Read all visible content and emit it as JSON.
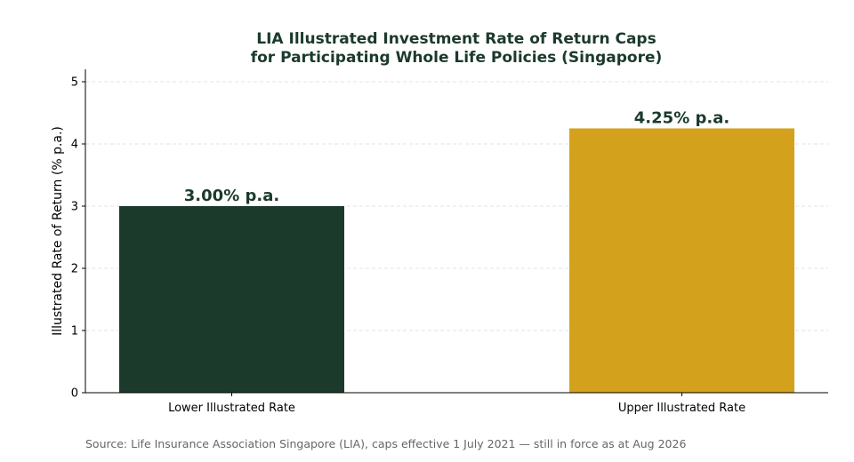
{
  "chart_data": {
    "type": "bar",
    "title_lines": [
      "LIA Illustrated Investment Rate of Return Caps",
      "for Participating Whole Life Policies (Singapore)"
    ],
    "xlabel": "",
    "ylabel": "Illustrated Rate of Return (% p.a.)",
    "categories": [
      "Lower Illustrated Rate",
      "Upper Illustrated Rate"
    ],
    "values": [
      3.0,
      4.25
    ],
    "data_labels": [
      "3.00% p.a.",
      "4.25% p.a."
    ],
    "bar_colors": [
      "#1b3a2b",
      "#d4a11c"
    ],
    "ylim": [
      0,
      5.2
    ],
    "yticks": [
      0,
      1,
      2,
      3,
      4,
      5
    ],
    "grid": "horizontal-dashed",
    "legend": "none"
  },
  "source_note": "Source: Life Insurance Association Singapore (LIA), caps effective 1 July 2021 — still in force as at Aug 2026",
  "colors": {
    "title": "#1b3a2b",
    "grid": "#e3e3e3",
    "source_text": "#666666"
  }
}
